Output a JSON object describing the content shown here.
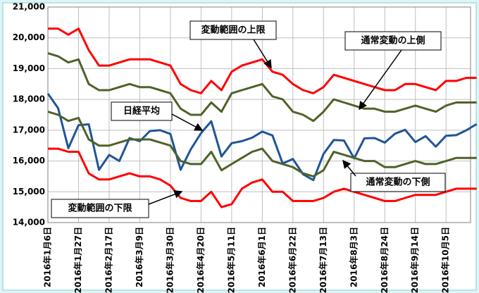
{
  "chart_data": {
    "type": "line",
    "categories": [
      "2016年1月6日",
      null,
      null,
      "2016年1月27日",
      null,
      null,
      "2016年2月17日",
      null,
      null,
      "2016年3月9日",
      null,
      null,
      "2016年3月30日",
      null,
      null,
      "2016年4月20日",
      null,
      null,
      "2016年5月11日",
      null,
      null,
      "2016年6月1日",
      null,
      null,
      "2016年6月22日",
      null,
      null,
      "2016年7月13日",
      null,
      null,
      "2016年8月3日",
      null,
      null,
      "2016年8月24日",
      null,
      null,
      "2016年9月14日",
      null,
      null,
      "2016年10月5日",
      null,
      null,
      null
    ],
    "series": [
      {
        "name": "変動範囲の上限",
        "color": "#ff0000",
        "values": [
          20300,
          20300,
          20100,
          20300,
          19600,
          19100,
          19100,
          19200,
          19300,
          19300,
          19300,
          19200,
          19100,
          18500,
          18300,
          18200,
          18600,
          18300,
          18900,
          19100,
          19200,
          19300,
          18900,
          18800,
          18500,
          18300,
          18200,
          18400,
          18800,
          18700,
          18600,
          18500,
          18400,
          18300,
          18300,
          18500,
          18500,
          18400,
          18300,
          18600,
          18600,
          18700,
          18700
        ]
      },
      {
        "name": "通常変動の上側",
        "color": "#4f6228",
        "values": [
          19500,
          19400,
          19200,
          19300,
          18500,
          18300,
          18300,
          18400,
          18500,
          18400,
          18400,
          18300,
          18200,
          17700,
          17500,
          17500,
          17900,
          17600,
          18200,
          18300,
          18400,
          18500,
          18100,
          18000,
          17600,
          17500,
          17300,
          17600,
          18000,
          17900,
          17800,
          17700,
          17700,
          17600,
          17600,
          17700,
          17800,
          17700,
          17600,
          17800,
          17900,
          17900,
          17900
        ]
      },
      {
        "name": "日経平均",
        "color": "#1f5597",
        "values": [
          18191,
          17716,
          16416,
          17163,
          17191,
          15713,
          16196,
          16000,
          16746,
          16642,
          16974,
          17000,
          16878,
          15715,
          16381,
          16906,
          17290,
          16147,
          16579,
          16644,
          16757,
          16955,
          16830,
          15919,
          16065,
          15566,
          15379,
          16231,
          16681,
          16665,
          16083,
          16735,
          16745,
          16597,
          16887,
          17012,
          16614,
          16807,
          16465,
          16819,
          16840,
          16998,
          17200
        ]
      },
      {
        "name": "通常変動の下側",
        "color": "#4f6228",
        "values": [
          17600,
          17500,
          17300,
          17400,
          16700,
          16500,
          16500,
          16600,
          16700,
          16700,
          16700,
          16600,
          16500,
          16000,
          15900,
          15900,
          16300,
          15700,
          15900,
          16100,
          16300,
          16400,
          16000,
          15900,
          15800,
          15600,
          15500,
          15700,
          16300,
          16200,
          16100,
          16000,
          16000,
          15800,
          15800,
          15900,
          16000,
          15900,
          15900,
          16000,
          16100,
          16100,
          16100
        ]
      },
      {
        "name": "変動範囲の下限",
        "color": "#ff0000",
        "values": [
          16400,
          16400,
          16300,
          16300,
          15600,
          15400,
          15400,
          15500,
          15600,
          15500,
          15500,
          15400,
          15200,
          14800,
          14700,
          14700,
          15000,
          14500,
          14600,
          15100,
          15300,
          15400,
          15000,
          15000,
          14700,
          14700,
          14700,
          14800,
          15000,
          15100,
          15000,
          14900,
          14800,
          14700,
          14700,
          14800,
          14900,
          14900,
          14900,
          15000,
          15100,
          15100,
          15100
        ]
      }
    ],
    "ylim": [
      14000,
      21000
    ],
    "yticks": [
      {
        "value": 14000,
        "label": "14,000"
      },
      {
        "value": 15000,
        "label": "15,000"
      },
      {
        "value": 16000,
        "label": "16,000"
      },
      {
        "value": 17000,
        "label": "17,000"
      },
      {
        "value": 18000,
        "label": "18,000"
      },
      {
        "value": 19000,
        "label": "19,000"
      },
      {
        "value": 20000,
        "label": "20,000"
      },
      {
        "value": 21000,
        "label": "21,000"
      }
    ],
    "grid": true
  }
}
